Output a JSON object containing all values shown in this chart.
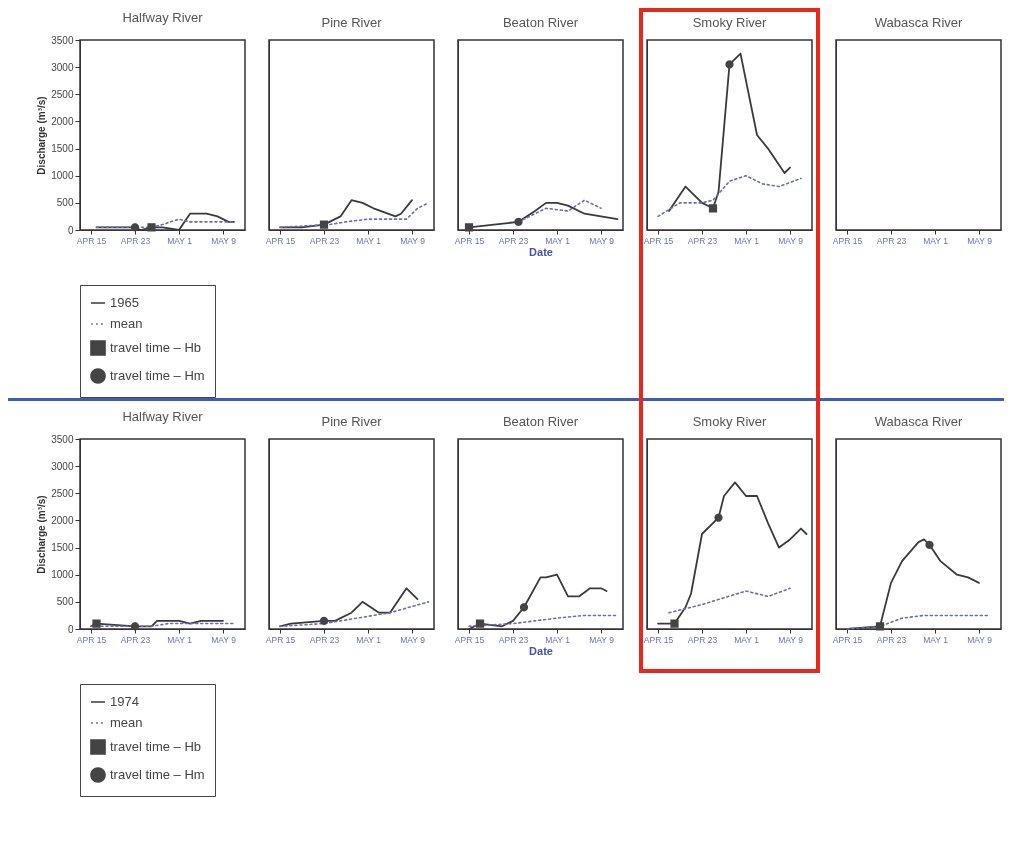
{
  "chart_data": [
    {
      "type": "line",
      "title": "Halfway River",
      "ylabel": "Discharge (m³/s)",
      "xlim": [
        "--04-13",
        "--05-13"
      ],
      "xticks": [
        {
          "value": "--04-15",
          "label": "APR 15"
        },
        {
          "value": "--04-23",
          "label": "APR 23"
        },
        {
          "value": "--05-01",
          "label": "MAY 1"
        },
        {
          "value": "--05-09",
          "label": "MAY 9"
        }
      ],
      "ylim": [
        0,
        3500
      ],
      "yticks": [
        0,
        500,
        1000,
        1500,
        2000,
        2500,
        3000,
        3500
      ],
      "legend": "bottom",
      "series": [
        {
          "name": "1965",
          "color": "#3a3a3a",
          "line_style": "solid",
          "x": [
            "--04-16",
            "--04-20",
            "--04-23",
            "--04-24",
            "--04-26",
            "--04-28",
            "--05-01",
            "--05-03",
            "--05-06",
            "--05-08",
            "--05-10",
            "--05-11"
          ],
          "values": [
            50,
            50,
            50,
            0,
            50,
            50,
            0,
            300,
            300,
            250,
            150,
            150
          ]
        },
        {
          "name": "mean",
          "color": "#6a6ab8",
          "line_style": "dotted",
          "x": [
            "--04-16",
            "--04-20",
            "--04-24",
            "--04-26",
            "--04-28",
            "--05-01",
            "--05-03",
            "--05-06",
            "--05-09",
            "--05-11"
          ],
          "values": [
            50,
            50,
            50,
            50,
            100,
            200,
            150,
            150,
            150,
            150
          ]
        },
        {
          "name": "travel time – Hb",
          "type": "scatter",
          "marker": "square",
          "color": "#444444",
          "x": [
            "--04-26"
          ],
          "values": [
            50
          ]
        },
        {
          "name": "travel time – Hm",
          "type": "scatter",
          "marker": "circle",
          "color": "#444444",
          "x": [
            "--04-23"
          ],
          "values": [
            50
          ]
        }
      ]
    },
    {
      "type": "line",
      "title": "Pine River",
      "tick_labels": "x",
      "xlim": [
        "--04-13",
        "--05-13"
      ],
      "xticks": [
        {
          "value": "--04-15",
          "label": "APR 15"
        },
        {
          "value": "--04-23",
          "label": "APR 23"
        },
        {
          "value": "--05-01",
          "label": "MAY 1"
        },
        {
          "value": "--05-09",
          "label": "MAY 9"
        }
      ],
      "ylim": [
        0,
        3500
      ],
      "yticks": [
        0,
        500,
        1000,
        1500,
        2000,
        2500,
        3000,
        3500
      ],
      "series": [
        {
          "color": "#3a3a3a",
          "line_style": "solid",
          "x": [
            "--04-15",
            "--04-19",
            "--04-23",
            "--04-26",
            "--04-28",
            "--04-30",
            "--05-02",
            "--05-06",
            "--05-07",
            "--05-09"
          ],
          "values": [
            50,
            50,
            100,
            250,
            550,
            500,
            400,
            250,
            300,
            550
          ]
        },
        {
          "color": "#6a6ab8",
          "line_style": "dotted",
          "x": [
            "--04-15",
            "--04-24",
            "--04-27",
            "--05-01",
            "--05-05",
            "--05-08",
            "--05-10",
            "--05-12"
          ],
          "values": [
            50,
            100,
            150,
            200,
            200,
            200,
            400,
            500
          ]
        },
        {
          "type": "scatter",
          "marker": "square",
          "color": "#444444",
          "x": [
            "--04-23"
          ],
          "values": [
            100
          ]
        }
      ]
    },
    {
      "type": "line",
      "title": "Beaton River",
      "xlabel": "Date",
      "tick_labels": "x",
      "xlim": [
        "--04-13",
        "--05-13"
      ],
      "xticks": [
        {
          "value": "--04-15",
          "label": "APR 15"
        },
        {
          "value": "--04-23",
          "label": "APR 23"
        },
        {
          "value": "--05-01",
          "label": "MAY 1"
        },
        {
          "value": "--05-09",
          "label": "MAY 9"
        }
      ],
      "ylim": [
        0,
        3500
      ],
      "yticks": [
        0,
        500,
        1000,
        1500,
        2000,
        2500,
        3000,
        3500
      ],
      "series": [
        {
          "color": "#3a3a3a",
          "line_style": "solid",
          "x": [
            "--04-15",
            "--04-24",
            "--04-27",
            "--04-29",
            "--05-01",
            "--05-03",
            "--05-06",
            "--05-12"
          ],
          "values": [
            50,
            150,
            350,
            500,
            500,
            450,
            300,
            200
          ]
        },
        {
          "color": "#6a6ab8",
          "line_style": "dotted",
          "x": [
            "--04-24",
            "--04-27",
            "--04-29",
            "--05-03",
            "--05-06",
            "--05-09"
          ],
          "values": [
            150,
            300,
            400,
            350,
            550,
            400
          ]
        },
        {
          "type": "scatter",
          "marker": "square",
          "color": "#444444",
          "x": [
            "--04-15"
          ],
          "values": [
            50
          ]
        },
        {
          "type": "scatter",
          "marker": "circle",
          "color": "#444444",
          "x": [
            "--04-24"
          ],
          "values": [
            150
          ]
        }
      ]
    },
    {
      "type": "line",
      "title": "Smoky River",
      "tick_labels": "x",
      "xlim": [
        "--04-13",
        "--05-13"
      ],
      "xticks": [
        {
          "value": "--04-15",
          "label": "APR 15"
        },
        {
          "value": "--04-23",
          "label": "APR 23"
        },
        {
          "value": "--05-01",
          "label": "MAY 1"
        },
        {
          "value": "--05-09",
          "label": "MAY 9"
        }
      ],
      "ylim": [
        0,
        3500
      ],
      "yticks": [
        0,
        500,
        1000,
        1500,
        2000,
        2500,
        3000,
        3500
      ],
      "series": [
        {
          "color": "#3a3a3a",
          "line_style": "solid",
          "x": [
            "--04-17",
            "--04-20",
            "--04-23",
            "--04-25",
            "--04-26",
            "--04-28",
            "--04-30",
            "--05-03",
            "--05-05",
            "--05-08",
            "--05-09"
          ],
          "values": [
            350,
            800,
            500,
            400,
            700,
            3050,
            3250,
            1750,
            1500,
            1050,
            1150
          ]
        },
        {
          "color": "#6a6ab8",
          "line_style": "dotted",
          "x": [
            "--04-15",
            "--04-19",
            "--04-23",
            "--04-25",
            "--04-28",
            "--05-01",
            "--05-04",
            "--05-07",
            "--05-11"
          ],
          "values": [
            250,
            500,
            500,
            550,
            900,
            1000,
            850,
            800,
            950
          ]
        },
        {
          "type": "scatter",
          "marker": "square",
          "color": "#444444",
          "x": [
            "--04-25"
          ],
          "values": [
            400
          ]
        },
        {
          "type": "scatter",
          "marker": "circle",
          "color": "#444444",
          "x": [
            "--04-28"
          ],
          "values": [
            3050
          ]
        }
      ]
    },
    {
      "type": "line",
      "title": "Wabasca River",
      "tick_labels": "x",
      "xlim": [
        "--04-13",
        "--05-13"
      ],
      "xticks": [
        {
          "value": "--04-15",
          "label": "APR 15"
        },
        {
          "value": "--04-23",
          "label": "APR 23"
        },
        {
          "value": "--05-01",
          "label": "MAY 1"
        },
        {
          "value": "--05-09",
          "label": "MAY 9"
        }
      ],
      "ylim": [
        0,
        3500
      ],
      "yticks": [
        0,
        500,
        1000,
        1500,
        2000,
        2500,
        3000,
        3500
      ]
    },
    {
      "type": "line",
      "title": "Halfway River",
      "ylabel": "Discharge (m³/s)",
      "xlim": [
        "--04-13",
        "--05-13"
      ],
      "xticks": [
        {
          "value": "--04-15",
          "label": "APR 15"
        },
        {
          "value": "--04-23",
          "label": "APR 23"
        },
        {
          "value": "--05-01",
          "label": "MAY 1"
        },
        {
          "value": "--05-09",
          "label": "MAY 9"
        }
      ],
      "ylim": [
        0,
        3500
      ],
      "yticks": [
        0,
        500,
        1000,
        1500,
        2000,
        2500,
        3000,
        3500
      ],
      "legend": "bottom",
      "series": [
        {
          "name": "1974",
          "color": "#3a3a3a",
          "line_style": "solid",
          "x": [
            "--04-15",
            "--04-16",
            "--04-23",
            "--04-26",
            "--04-27",
            "--04-29",
            "--05-01",
            "--05-03",
            "--05-05",
            "--05-07",
            "--05-09"
          ],
          "values": [
            50,
            100,
            50,
            50,
            150,
            150,
            150,
            100,
            150,
            150,
            150
          ]
        },
        {
          "name": "mean",
          "color": "#6a6ab8",
          "line_style": "dotted",
          "x": [
            "--04-15",
            "--04-26",
            "--04-29",
            "--05-03",
            "--05-11"
          ],
          "values": [
            50,
            50,
            100,
            100,
            100
          ]
        },
        {
          "name": "travel time – Hb",
          "type": "scatter",
          "marker": "square",
          "color": "#444444",
          "x": [
            "--04-16"
          ],
          "values": [
            100
          ]
        },
        {
          "name": "travel time – Hm",
          "type": "scatter",
          "marker": "circle",
          "color": "#444444",
          "x": [
            "--04-23"
          ],
          "values": [
            50
          ]
        }
      ]
    },
    {
      "type": "line",
      "title": "Pine River",
      "tick_labels": "x",
      "xlim": [
        "--04-13",
        "--05-13"
      ],
      "xticks": [
        {
          "value": "--04-15",
          "label": "APR 15"
        },
        {
          "value": "--04-23",
          "label": "APR 23"
        },
        {
          "value": "--05-01",
          "label": "MAY 1"
        },
        {
          "value": "--05-09",
          "label": "MAY 9"
        }
      ],
      "ylim": [
        0,
        3500
      ],
      "yticks": [
        0,
        500,
        1000,
        1500,
        2000,
        2500,
        3000,
        3500
      ],
      "series": [
        {
          "color": "#3a3a3a",
          "line_style": "solid",
          "x": [
            "--04-15",
            "--04-17",
            "--04-23",
            "--04-25",
            "--04-28",
            "--04-30",
            "--05-03",
            "--05-05",
            "--05-08",
            "--05-10"
          ],
          "values": [
            50,
            100,
            150,
            150,
            300,
            500,
            300,
            300,
            750,
            550
          ]
        },
        {
          "color": "#6a6ab8",
          "line_style": "dotted",
          "x": [
            "--04-15",
            "--04-23",
            "--04-29",
            "--05-05",
            "--05-12"
          ],
          "values": [
            50,
            100,
            200,
            300,
            500
          ]
        },
        {
          "type": "scatter",
          "marker": "circle",
          "color": "#444444",
          "x": [
            "--04-23"
          ],
          "values": [
            150
          ]
        }
      ]
    },
    {
      "type": "line",
      "title": "Beaton River",
      "xlabel": "Date",
      "tick_labels": "x",
      "xlim": [
        "--04-13",
        "--05-13"
      ],
      "xticks": [
        {
          "value": "--04-15",
          "label": "APR 15"
        },
        {
          "value": "--04-23",
          "label": "APR 23"
        },
        {
          "value": "--05-01",
          "label": "MAY 1"
        },
        {
          "value": "--05-09",
          "label": "MAY 9"
        }
      ],
      "ylim": [
        0,
        3500
      ],
      "yticks": [
        0,
        500,
        1000,
        1500,
        2000,
        2500,
        3000,
        3500
      ],
      "series": [
        {
          "color": "#3a3a3a",
          "line_style": "solid",
          "x": [
            "--04-15",
            "--04-17",
            "--04-21",
            "--04-23",
            "--04-25",
            "--04-28",
            "--04-29",
            "--05-01",
            "--05-03",
            "--05-05",
            "--05-07",
            "--05-09",
            "--05-10"
          ],
          "values": [
            0,
            100,
            50,
            150,
            400,
            950,
            950,
            1000,
            600,
            600,
            750,
            750,
            700
          ]
        },
        {
          "color": "#6a6ab8",
          "line_style": "dotted",
          "x": [
            "--04-15",
            "--04-23",
            "--04-27",
            "--05-01",
            "--05-06",
            "--05-12"
          ],
          "values": [
            50,
            100,
            150,
            200,
            250,
            250
          ]
        },
        {
          "type": "scatter",
          "marker": "square",
          "color": "#444444",
          "x": [
            "--04-17"
          ],
          "values": [
            100
          ]
        },
        {
          "type": "scatter",
          "marker": "circle",
          "color": "#444444",
          "x": [
            "--04-25"
          ],
          "values": [
            400
          ]
        }
      ]
    },
    {
      "type": "line",
      "title": "Smoky River",
      "tick_labels": "x",
      "xlim": [
        "--04-13",
        "--05-13"
      ],
      "xticks": [
        {
          "value": "--04-15",
          "label": "APR 15"
        },
        {
          "value": "--04-23",
          "label": "APR 23"
        },
        {
          "value": "--05-01",
          "label": "MAY 1"
        },
        {
          "value": "--05-09",
          "label": "MAY 9"
        }
      ],
      "ylim": [
        0,
        3500
      ],
      "yticks": [
        0,
        500,
        1000,
        1500,
        2000,
        2500,
        3000,
        3500
      ],
      "series": [
        {
          "color": "#3a3a3a",
          "line_style": "solid",
          "x": [
            "--04-15",
            "--04-18",
            "--04-20",
            "--04-21",
            "--04-23",
            "--04-26",
            "--04-27",
            "--04-29",
            "--05-01",
            "--05-03",
            "--05-05",
            "--05-07",
            "--05-09",
            "--05-11",
            "--05-12"
          ],
          "values": [
            100,
            100,
            400,
            650,
            1750,
            2050,
            2450,
            2700,
            2450,
            2450,
            1950,
            1500,
            1650,
            1850,
            1750
          ]
        },
        {
          "color": "#6a6ab8",
          "line_style": "dotted",
          "x": [
            "--04-17",
            "--04-23",
            "--05-01",
            "--05-05",
            "--05-09"
          ],
          "values": [
            300,
            450,
            700,
            600,
            750
          ]
        },
        {
          "type": "scatter",
          "marker": "square",
          "color": "#444444",
          "x": [
            "--04-18"
          ],
          "values": [
            100
          ]
        },
        {
          "type": "scatter",
          "marker": "circle",
          "color": "#444444",
          "x": [
            "--04-26"
          ],
          "values": [
            2050
          ]
        }
      ]
    },
    {
      "type": "line",
      "title": "Wabasca River",
      "tick_labels": "x",
      "xlim": [
        "--04-13",
        "--05-13"
      ],
      "xticks": [
        {
          "value": "--04-15",
          "label": "APR 15"
        },
        {
          "value": "--04-23",
          "label": "APR 23"
        },
        {
          "value": "--05-01",
          "label": "MAY 1"
        },
        {
          "value": "--05-09",
          "label": "MAY 9"
        }
      ],
      "ylim": [
        0,
        3500
      ],
      "yticks": [
        0,
        500,
        1000,
        1500,
        2000,
        2500,
        3000,
        3500
      ],
      "series": [
        {
          "color": "#3a3a3a",
          "line_style": "solid",
          "x": [
            "--04-15",
            "--04-21",
            "--04-23",
            "--04-25",
            "--04-28",
            "--04-29",
            "--04-30",
            "--05-02",
            "--05-05",
            "--05-07",
            "--05-09"
          ],
          "values": [
            0,
            50,
            850,
            1250,
            1600,
            1650,
            1550,
            1250,
            1000,
            950,
            850
          ]
        },
        {
          "color": "#6a6ab8",
          "line_style": "dotted",
          "x": [
            "--04-15",
            "--04-21",
            "--04-25",
            "--04-29",
            "--05-11"
          ],
          "values": [
            0,
            50,
            200,
            250,
            250
          ]
        },
        {
          "type": "scatter",
          "marker": "square",
          "color": "#444444",
          "x": [
            "--04-21"
          ],
          "values": [
            50
          ]
        },
        {
          "type": "scatter",
          "marker": "circle",
          "color": "#444444",
          "x": [
            "--04-30"
          ],
          "values": [
            1550
          ]
        }
      ]
    }
  ]
}
